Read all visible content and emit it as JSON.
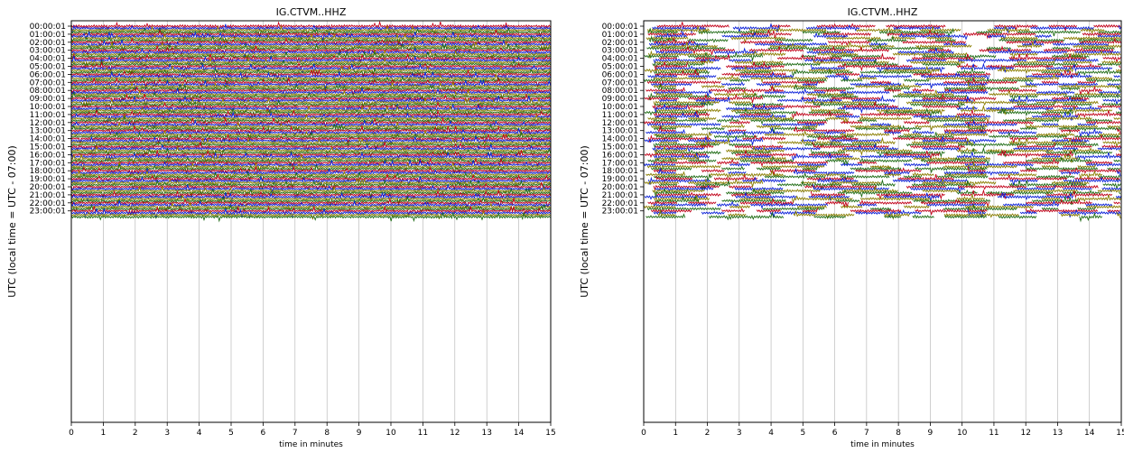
{
  "chart_data": [
    {
      "type": "line",
      "title": "IG.CTVM..HHZ",
      "xlabel": "time in minutes",
      "ylabel": "UTC (local time = UTC - 07:00)",
      "xlim": [
        0,
        15
      ],
      "x_ticks": [
        "0",
        "1",
        "2",
        "3",
        "4",
        "5",
        "6",
        "7",
        "8",
        "9",
        "10",
        "11",
        "12",
        "13",
        "14",
        "15"
      ],
      "y_ticks": [
        "00:00:01",
        "01:00:01",
        "02:00:01",
        "03:00:01",
        "04:00:01",
        "05:00:01",
        "06:00:01",
        "07:00:01",
        "08:00:01",
        "09:00:01",
        "10:00:01",
        "11:00:01",
        "12:00:01",
        "13:00:01",
        "14:00:01",
        "15:00:01",
        "16:00:01",
        "17:00:01",
        "18:00:01",
        "19:00:01",
        "20:00:01",
        "21:00:01",
        "22:00:01",
        "23:00:01"
      ],
      "traces_per_hour": 4,
      "trace_colors": [
        "#c00018",
        "#0a1fd8",
        "#8a7d00",
        "#1e6b14"
      ],
      "grid": "vertical",
      "continuous": true
    },
    {
      "type": "line",
      "title": "IG.CTVM..HHZ",
      "xlabel": "time in minutes",
      "ylabel": "UTC (local time = UTC - 07:00)",
      "xlim": [
        0,
        15
      ],
      "x_ticks": [
        "0",
        "1",
        "2",
        "3",
        "4",
        "5",
        "6",
        "7",
        "8",
        "9",
        "10",
        "11",
        "12",
        "13",
        "14",
        "15"
      ],
      "y_ticks": [
        "00:00:01",
        "01:00:01",
        "02:00:01",
        "03:00:01",
        "04:00:01",
        "05:00:01",
        "06:00:01",
        "07:00:01",
        "08:00:01",
        "09:00:01",
        "10:00:01",
        "11:00:01",
        "12:00:01",
        "13:00:01",
        "14:00:01",
        "15:00:01",
        "16:00:01",
        "17:00:01",
        "18:00:01",
        "19:00:01",
        "20:00:01",
        "21:00:01",
        "22:00:01",
        "23:00:01"
      ],
      "traces_per_hour": 4,
      "trace_colors": [
        "#c00018",
        "#0a1fd8",
        "#8a7d00",
        "#1e6b14"
      ],
      "grid": "vertical",
      "continuous": false
    }
  ]
}
